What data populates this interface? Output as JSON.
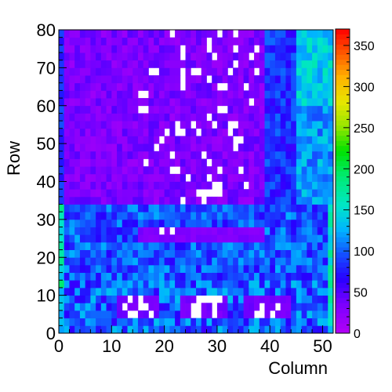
{
  "chart_data": {
    "type": "heatmap",
    "title": "",
    "xlabel": "Column",
    "ylabel": "Row",
    "xlim": [
      0,
      52
    ],
    "ylim": [
      0,
      80
    ],
    "x_ticks": [
      "0",
      "10",
      "20",
      "30",
      "40",
      "50"
    ],
    "y_ticks": [
      "0",
      "10",
      "20",
      "30",
      "40",
      "50",
      "60",
      "70",
      "80"
    ],
    "colorbar": {
      "range": [
        0,
        370
      ],
      "ticks": [
        "0",
        "50",
        "100",
        "150",
        "200",
        "250",
        "300",
        "350"
      ]
    },
    "grid": false,
    "legend": "colorbar-right",
    "cell_width_in_columns": 1,
    "cell_height_in_rows": 2,
    "notes": "white cells are empty (zero-valued) bins"
  }
}
